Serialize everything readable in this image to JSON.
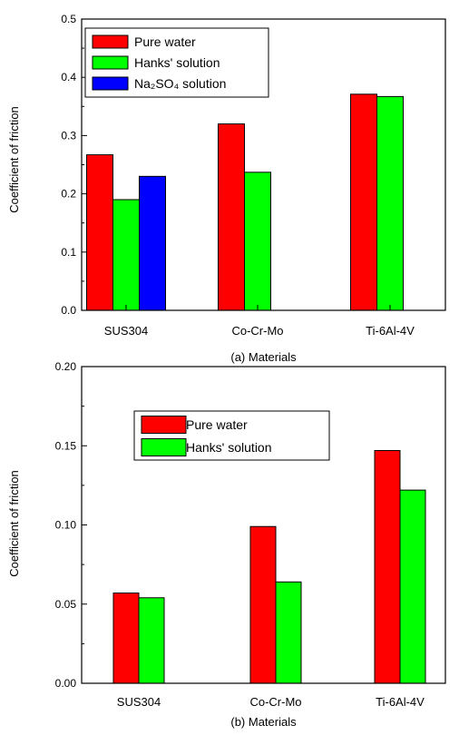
{
  "chart_data": [
    {
      "type": "bar",
      "categories": [
        "SUS304",
        "Co-Cr-Mo",
        "Ti-6Al-4V"
      ],
      "series": [
        {
          "name": "Pure water",
          "color": "#ff0000",
          "values": [
            0.267,
            0.32,
            0.371
          ]
        },
        {
          "name": "Hanks' solution",
          "color": "#00ff00",
          "values": [
            0.19,
            0.237,
            0.367
          ]
        },
        {
          "name": "Na₂SO₄ solution",
          "color": "#0000ff",
          "values": [
            0.23,
            null,
            null
          ]
        }
      ],
      "ylabel": "Coefficient  of friction",
      "xlabel": "(a) Materials",
      "ylim": [
        0,
        0.5
      ],
      "yticks": [
        "0.0",
        "0.1",
        "0.2",
        "0.3",
        "0.4",
        "0.5"
      ],
      "grid": false,
      "legend_position": "top-left"
    },
    {
      "type": "bar",
      "categories": [
        "SUS304",
        "Co-Cr-Mo",
        "Ti-6Al-4V"
      ],
      "series": [
        {
          "name": "Pure water",
          "color": "#ff0000",
          "values": [
            0.057,
            0.099,
            0.147
          ]
        },
        {
          "name": "Hanks' solution",
          "color": "#00ff00",
          "values": [
            0.054,
            0.064,
            0.122
          ]
        }
      ],
      "ylabel": "Coefficient  of friction",
      "xlabel": "(b) Materials",
      "ylim": [
        0,
        0.2
      ],
      "yticks": [
        "0.00",
        "0.05",
        "0.10",
        "0.15",
        "0.20"
      ],
      "grid": false,
      "legend_position": "top-left"
    }
  ]
}
